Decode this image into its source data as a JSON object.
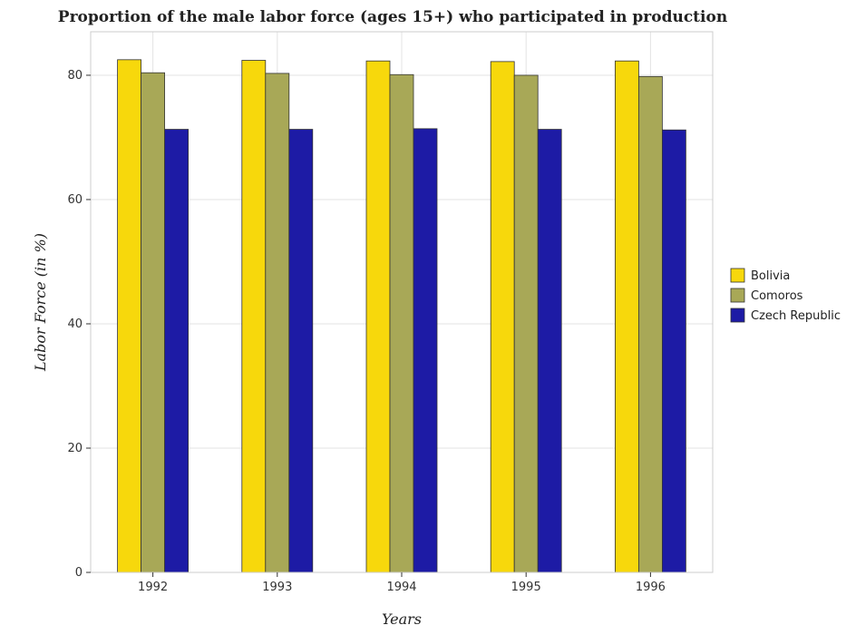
{
  "chart_data": {
    "type": "bar",
    "title": "Proportion of the male labor force (ages 15+) who participated in production",
    "xlabel": "Years",
    "ylabel": "Labor Force (in %)",
    "categories": [
      "1992",
      "1993",
      "1994",
      "1995",
      "1996"
    ],
    "series": [
      {
        "name": "Bolivia",
        "color": "#f7d80c",
        "values": [
          82.5,
          82.4,
          82.3,
          82.2,
          82.3
        ]
      },
      {
        "name": "Comoros",
        "color": "#a8a857",
        "values": [
          80.4,
          80.3,
          80.1,
          80.0,
          79.8
        ]
      },
      {
        "name": "Czech Republic",
        "color": "#1d1ba5",
        "values": [
          71.3,
          71.3,
          71.4,
          71.3,
          71.2
        ]
      }
    ],
    "ylim": [
      0,
      87
    ],
    "yticks": [
      0,
      20,
      40,
      60,
      80
    ],
    "grid": true,
    "legend_position": "right"
  }
}
